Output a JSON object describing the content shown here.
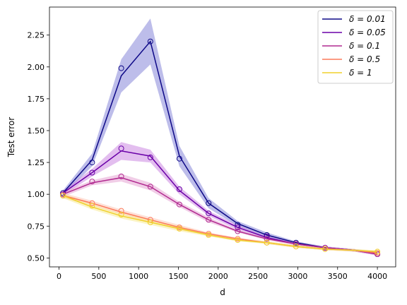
{
  "chart_data": {
    "type": "line",
    "title": "",
    "xlabel": "d",
    "ylabel": "Test error",
    "xlim": [
      -120,
      4230
    ],
    "ylim": [
      0.43,
      2.47
    ],
    "xticks": [
      0,
      500,
      1000,
      1500,
      2000,
      2500,
      3000,
      3500,
      4000
    ],
    "xtick_labels": [
      "0",
      "500",
      "1000",
      "1500",
      "2000",
      "2500",
      "3000",
      "3500",
      "4000"
    ],
    "yticks": [
      0.5,
      0.75,
      1.0,
      1.25,
      1.5,
      1.75,
      2.0,
      2.25
    ],
    "ytick_labels": [
      "0.50",
      "0.75",
      "1.00",
      "1.25",
      "1.50",
      "1.75",
      "2.00",
      "2.25"
    ],
    "grid": false,
    "legend_placement": "top-right",
    "x": [
      50,
      416,
      782,
      1148,
      1513,
      1879,
      2245,
      2611,
      2977,
      3343,
      3709,
      4000
    ],
    "marker_x": [
      50,
      416,
      782,
      1148,
      1513,
      1879,
      2245,
      2611,
      2977,
      3343,
      4000
    ],
    "series": [
      {
        "name": "δ = 0.01",
        "color": "#0d0887",
        "band_color": "#7b7bd6",
        "values": [
          1.01,
          1.27,
          1.93,
          2.2,
          1.3,
          0.93,
          0.77,
          0.68,
          0.62,
          0.58,
          0.56,
          0.54
        ],
        "lower": [
          0.99,
          1.22,
          1.8,
          2.02,
          1.22,
          0.89,
          0.75,
          0.66,
          0.61,
          0.57,
          0.55,
          0.53
        ],
        "upper": [
          1.03,
          1.32,
          2.06,
          2.38,
          1.38,
          0.97,
          0.79,
          0.7,
          0.63,
          0.59,
          0.57,
          0.55
        ],
        "markers": [
          1.01,
          1.25,
          1.99,
          2.2,
          1.28,
          0.93,
          0.76,
          0.68,
          0.62,
          0.58,
          0.53
        ]
      },
      {
        "name": "δ = 0.05",
        "color": "#6a00a8",
        "band_color": "#c77ee0",
        "values": [
          1.01,
          1.17,
          1.34,
          1.3,
          1.03,
          0.85,
          0.74,
          0.66,
          0.61,
          0.58,
          0.56,
          0.53
        ],
        "lower": [
          0.99,
          1.14,
          1.27,
          1.25,
          1.0,
          0.83,
          0.72,
          0.65,
          0.6,
          0.57,
          0.55,
          0.52
        ],
        "upper": [
          1.03,
          1.2,
          1.41,
          1.35,
          1.06,
          0.87,
          0.76,
          0.67,
          0.62,
          0.59,
          0.57,
          0.54
        ],
        "markers": [
          1.0,
          1.17,
          1.36,
          1.29,
          1.04,
          0.85,
          0.74,
          0.67,
          0.61,
          0.58,
          0.53
        ]
      },
      {
        "name": "δ = 0.1",
        "color": "#b12a90",
        "band_color": "#e39bd0",
        "values": [
          1.0,
          1.09,
          1.13,
          1.06,
          0.92,
          0.8,
          0.71,
          0.65,
          0.61,
          0.58,
          0.56,
          0.53
        ],
        "lower": [
          0.98,
          1.07,
          1.1,
          1.03,
          0.9,
          0.78,
          0.7,
          0.64,
          0.6,
          0.57,
          0.55,
          0.52
        ],
        "upper": [
          1.02,
          1.11,
          1.16,
          1.09,
          0.94,
          0.82,
          0.72,
          0.66,
          0.62,
          0.59,
          0.57,
          0.54
        ],
        "markers": [
          1.0,
          1.1,
          1.14,
          1.06,
          0.92,
          0.8,
          0.71,
          0.65,
          0.61,
          0.58,
          0.53
        ]
      },
      {
        "name": "δ = 0.5",
        "color": "#fc7a5a",
        "band_color": "#fdc2b0",
        "values": [
          0.99,
          0.93,
          0.86,
          0.8,
          0.74,
          0.69,
          0.65,
          0.62,
          0.59,
          0.57,
          0.56,
          0.54
        ],
        "lower": [
          0.97,
          0.91,
          0.84,
          0.78,
          0.72,
          0.68,
          0.64,
          0.61,
          0.58,
          0.56,
          0.55,
          0.53
        ],
        "upper": [
          1.01,
          0.95,
          0.88,
          0.82,
          0.76,
          0.7,
          0.66,
          0.63,
          0.6,
          0.58,
          0.57,
          0.55
        ],
        "markers": [
          0.99,
          0.93,
          0.87,
          0.8,
          0.74,
          0.69,
          0.65,
          0.62,
          0.59,
          0.57,
          0.54
        ]
      },
      {
        "name": "δ = 1",
        "color": "#f0d02c",
        "band_color": "#f7e98a",
        "values": [
          0.99,
          0.9,
          0.83,
          0.78,
          0.73,
          0.68,
          0.64,
          0.62,
          0.59,
          0.57,
          0.56,
          0.55
        ],
        "lower": [
          0.97,
          0.88,
          0.81,
          0.76,
          0.71,
          0.67,
          0.63,
          0.61,
          0.58,
          0.56,
          0.55,
          0.54
        ],
        "upper": [
          1.01,
          0.92,
          0.85,
          0.8,
          0.75,
          0.69,
          0.65,
          0.63,
          0.6,
          0.58,
          0.57,
          0.56
        ],
        "markers": [
          0.99,
          0.91,
          0.84,
          0.78,
          0.73,
          0.68,
          0.64,
          0.62,
          0.59,
          0.57,
          0.55
        ]
      }
    ]
  }
}
